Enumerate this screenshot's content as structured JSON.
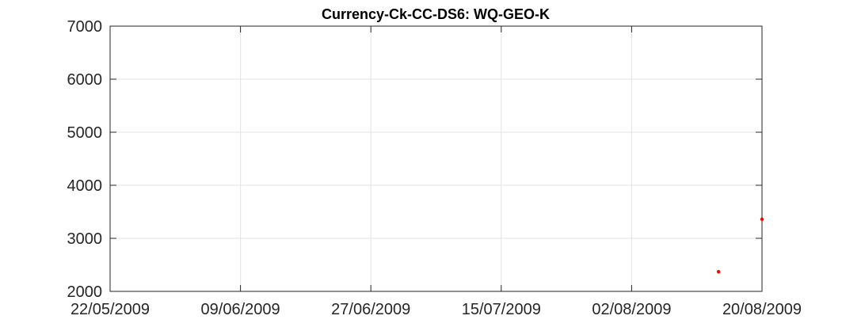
{
  "chart_data": {
    "type": "scatter",
    "title": "Currency-Ck-CC-DS6: WQ-GEO-K",
    "xlabel": "",
    "ylabel": "",
    "x_axis": {
      "kind": "date",
      "range": [
        "2009-05-22",
        "2009-08-20"
      ],
      "ticks": [
        {
          "date": "2009-05-22",
          "label": "22/05/2009"
        },
        {
          "date": "2009-06-09",
          "label": "09/06/2009"
        },
        {
          "date": "2009-06-27",
          "label": "27/06/2009"
        },
        {
          "date": "2009-07-15",
          "label": "15/07/2009"
        },
        {
          "date": "2009-08-02",
          "label": "02/08/2009"
        },
        {
          "date": "2009-08-20",
          "label": "20/08/2009"
        }
      ]
    },
    "y_axis": {
      "range": [
        2000,
        7000
      ],
      "ticks": [
        2000,
        3000,
        4000,
        5000,
        6000,
        7000
      ]
    },
    "grid": true,
    "series": [
      {
        "color": "#ff0000",
        "points": [
          {
            "x": "2009-08-14",
            "y": 2370
          },
          {
            "x": "2009-08-20",
            "y": 3360
          }
        ]
      }
    ],
    "colors": {
      "marker": "#ff0000",
      "grid": "#e3e3e3",
      "axis": "#262626"
    }
  }
}
